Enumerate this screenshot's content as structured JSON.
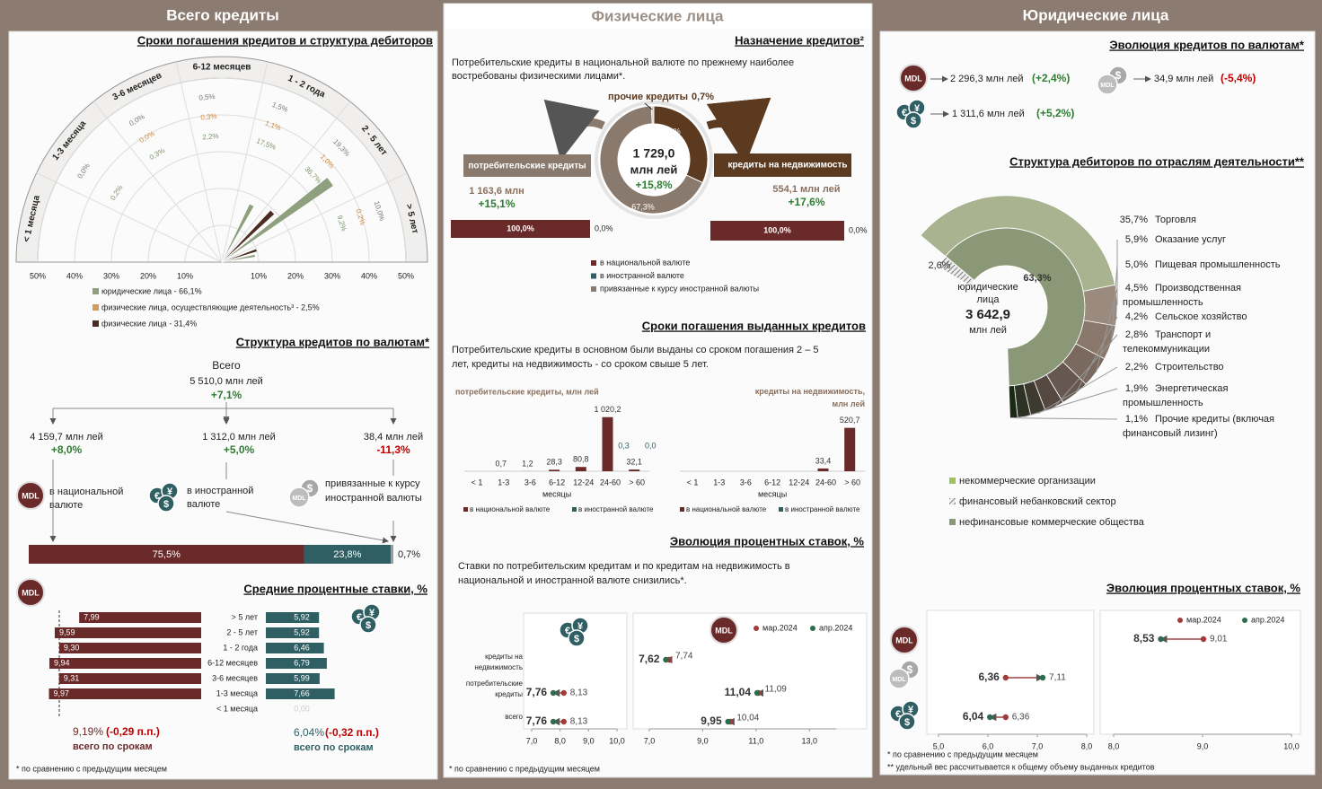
{
  "panels": {
    "total": "Всего кредиты",
    "individuals": "Физические лица",
    "legal": "Юридические лица"
  },
  "icons": {
    "mdl": "MDL",
    "fx": [
      "€",
      "$",
      "¥"
    ],
    "linked": "$"
  },
  "total": {
    "maturity": {
      "type": "polar-bar",
      "title": "Сроки погашения кредитов и структура дебиторов",
      "categories": [
        "< 1 месяца",
        "1-3 месяца",
        "3-6 месяцев",
        "6-12 месяцев",
        "1 - 2 года",
        "2 - 5 лет",
        "> 5 лет"
      ],
      "rlim": [
        0,
        50
      ],
      "rticks": [
        {
          "value": 10,
          "label": "10%"
        },
        {
          "value": 20,
          "label": "20%"
        },
        {
          "value": 30,
          "label": "30%"
        },
        {
          "value": 40,
          "label": "40%"
        },
        {
          "value": 50,
          "label": "50%"
        }
      ],
      "series": [
        {
          "name": "юридические лица - 66,1%",
          "color": "#8fa07e",
          "values": [
            null,
            0.2,
            0.3,
            2.2,
            17.5,
            36.7,
            9.2
          ],
          "value_labels": [
            null,
            "0,2%",
            "0,3%",
            "2,2%",
            "17,5%",
            "36,7%",
            "9,2%"
          ]
        },
        {
          "name": "физические лица, осуществляющие деятельность³ - 2,5%",
          "color": "#d39a5e",
          "values": [
            null,
            null,
            0.0,
            0.3,
            1.1,
            1.0,
            0.2
          ],
          "value_labels": [
            null,
            null,
            "0,0%",
            "0,3%",
            "1,1%",
            "1,0%",
            "0,2%"
          ]
        },
        {
          "name": "физические лица - 31,4%",
          "color": "#4a2c20",
          "values": [
            null,
            0.0,
            0.0,
            0.5,
            1.5,
            19.3,
            10.0
          ],
          "value_labels": [
            null,
            "0,0%",
            "0,0%",
            "0,5%",
            "1,5%",
            "19,3%",
            "10,0%"
          ]
        }
      ]
    },
    "currency": {
      "title": "Структура кредитов по валютам*",
      "total_label": "Всего",
      "total_value": "5 510,0 млн лей",
      "total_change": "+7,1%",
      "items": [
        {
          "amount": "4 159,7 млн лей",
          "change": "+8,0%",
          "label": "в национальной валюте"
        },
        {
          "amount": "1 312,0 млн лей",
          "change": "+5,0%",
          "label": "в  иностранной валюте"
        },
        {
          "amount": "38,4 млн лей",
          "change": "-11,3%",
          "label": "привязанные к курсу иностранной валюты"
        }
      ],
      "shares": {
        "values": [
          75.5,
          23.8,
          0.7
        ],
        "value_labels": [
          "75,5%",
          "23,8%",
          "0,7%"
        ],
        "colors": [
          "#6b2a2a",
          "#2f5f63",
          "#9a9a9a"
        ]
      }
    },
    "rates": {
      "title": "Средние процентные ставки, %",
      "categories": [
        "> 5 лет",
        "2 - 5 лет",
        "1 - 2 года",
        "6-12 месяцев",
        "3-6 месяцев",
        "1-3 месяца",
        "< 1 месяца"
      ],
      "mdl": {
        "color": "#6b2a2a",
        "xlim": [
          0,
          10
        ],
        "values": [
          7.99,
          9.59,
          9.3,
          9.94,
          9.31,
          9.97,
          null
        ],
        "value_labels": [
          "7,99",
          "9,59",
          "9,30",
          "9,94",
          "9,31",
          "9,97",
          null
        ]
      },
      "fx": {
        "color": "#2f5f63",
        "xlim": [
          0,
          10
        ],
        "values": [
          5.92,
          5.92,
          6.46,
          6.79,
          5.99,
          7.66,
          0.0
        ],
        "value_labels": [
          "5,92",
          "5,92",
          "6,46",
          "6,79",
          "5,99",
          "7,66",
          "0,00"
        ]
      },
      "mdl_total": {
        "value": "9,19%",
        "change": "(-0,29 п.п.)",
        "label": "всего по срокам"
      },
      "fx_total": {
        "value": "6,04%",
        "change": "(-0,32 п.п.)",
        "label": "всего по срокам"
      }
    },
    "footnote": "* по сравнению с предыдущим месяцем"
  },
  "individuals": {
    "purpose": {
      "type": "donut",
      "title": "Назначение кредитов²",
      "text": "Потребительские кредиты в национальной валюте по прежнему наиболее востребованы физическими лицами*.",
      "total": "1 729,0",
      "unit": "млн лей",
      "change": "+15,8%",
      "categories": [
        "кредиты на недвижимость",
        "потребительские кредиты",
        "прочие кредиты"
      ],
      "values": [
        32.0,
        67.3,
        0.7
      ],
      "value_labels": [
        "32,0%",
        "67,3%",
        "0,7%"
      ],
      "colors": [
        "#5b3a1f",
        "#8a7a6e",
        "#cfc8c2"
      ],
      "consumer": {
        "amount": "1 163,6 млн",
        "change": "+15,1%",
        "shares": [
          100.0,
          0.0
        ],
        "share_labels": [
          "100,0%",
          "0,0%"
        ]
      },
      "realestate": {
        "amount": "554,1 млн лей",
        "change": "+17,6%",
        "shares": [
          100.0,
          0.0
        ],
        "share_labels": [
          "100,0%",
          "0,0%"
        ]
      },
      "legend": [
        {
          "name": "в национальной валюте",
          "color": "#6b2a2a"
        },
        {
          "name": "в иностранной валюте",
          "color": "#2f5f63"
        },
        {
          "name": "привязанные к курсу иностранной валюты",
          "color": "#8a7a6e"
        }
      ]
    },
    "maturity": {
      "title": "Сроки погашения выданных кредитов",
      "text": "Потребительские кредиты в основном были выданы со сроком погашения 2 – 5 лет, кредиты на недвижимость - со сроком свыше 5 лет.",
      "x_label": "месяцы",
      "categories": [
        "< 1",
        "1-3",
        "3-6",
        "6-12",
        "12-24",
        "24-60",
        "> 60"
      ],
      "charts": [
        {
          "type": "bar",
          "title": "потребительские кредиты, млн лей",
          "ylim": [
            0,
            1100
          ],
          "series": [
            {
              "name": "в национальной валюте",
              "color": "#6b2a2a",
              "values": [
                null,
                0.7,
                1.2,
                28.3,
                80.8,
                1020.2,
                32.1
              ],
              "value_labels": [
                null,
                "0,7",
                "1,2",
                "28,3",
                "80,8",
                "1 020,2",
                "32,1"
              ]
            },
            {
              "name": "в иностранной валюте",
              "color": "#2f5f63",
              "values": [
                null,
                null,
                null,
                null,
                null,
                0.3,
                0.0
              ],
              "value_labels": [
                null,
                null,
                null,
                null,
                null,
                "0,3",
                "0,0"
              ]
            }
          ]
        },
        {
          "type": "bar",
          "title": "кредиты на недвижимость, млн лей",
          "ylim": [
            0,
            700
          ],
          "series": [
            {
              "name": "в национальной валюте",
              "color": "#6b2a2a",
              "values": [
                null,
                null,
                null,
                null,
                null,
                33.4,
                520.7
              ],
              "value_labels": [
                null,
                null,
                null,
                null,
                null,
                "33,4",
                "520,7"
              ]
            },
            {
              "name": "в иностранной валюте",
              "color": "#2f5f63",
              "values": [
                null,
                null,
                null,
                null,
                null,
                null,
                null
              ],
              "value_labels": [
                null,
                null,
                null,
                null,
                null,
                null,
                null
              ]
            }
          ]
        }
      ]
    },
    "rates": {
      "title": "Эволюция процентных ставок, %",
      "text": "Ставки по потребительским кредитам и по кредитам на недвижимость в национальной и иностранной валюте снизились*.",
      "categories": [
        "кредиты на недвижимость",
        "потребительские кредиты",
        "всего"
      ],
      "series": [
        {
          "name": "мар.2024",
          "color": "#a33a3a"
        },
        {
          "name": "апр.2024",
          "color": "#2e6b4f"
        }
      ],
      "charts": [
        {
          "type": "dot",
          "xlim": [
            7,
            10
          ],
          "xticks": [
            {
              "value": 7,
              "label": "7,0"
            },
            {
              "value": 8,
              "label": "8,0"
            },
            {
              "value": 9,
              "label": "9,0"
            },
            {
              "value": 10,
              "label": "10,0"
            }
          ],
          "values": [
            [
              null,
              8.13,
              8.13
            ],
            [
              null,
              7.76,
              7.76
            ]
          ],
          "value_labels": [
            [
              null,
              "8,13",
              "8,13"
            ],
            [
              null,
              "7,76",
              "7,76"
            ]
          ]
        },
        {
          "type": "dot",
          "xlim": [
            7,
            14
          ],
          "xticks": [
            {
              "value": 7,
              "label": "7,0"
            },
            {
              "value": 9,
              "label": "9,0"
            },
            {
              "value": 11,
              "label": "11,0"
            },
            {
              "value": 13,
              "label": "13,0"
            }
          ],
          "values": [
            [
              7.74,
              11.09,
              10.04
            ],
            [
              7.62,
              11.04,
              9.95
            ]
          ],
          "value_labels": [
            [
              "7,74",
              "11,09",
              "10,04"
            ],
            [
              "7,62",
              "11,04",
              "9,95"
            ]
          ]
        }
      ]
    },
    "footnote": "* по сравнению с предыдущим месяцем"
  },
  "legal": {
    "currency": {
      "title": "Эволюция кредитов по валютам*",
      "items": [
        {
          "amount": "2 296,3 млн лей",
          "change": "(+2,4%)"
        },
        {
          "amount": "34,9 млн лей",
          "change": "(-5,4%)"
        },
        {
          "amount": "1 311,6 млн лей",
          "change": "(+5,2%)"
        }
      ]
    },
    "debtors": {
      "type": "sunburst",
      "title": "Структура дебиторов по отраслям деятельности**",
      "center_label": "юридические лица",
      "center_value": "3 642,9",
      "center_unit": "млн лей",
      "legend": [
        {
          "name": "некоммерческие организации",
          "color": "#9fc35a"
        },
        {
          "name": "финансовый небанковский сектор",
          "color": "#cfcfcf"
        },
        {
          "name": "нефинансовые коммерческие общества",
          "color": "#8a9878"
        }
      ],
      "inner": {
        "values": [
          2.6,
          63.3
        ],
        "value_labels": [
          "2,6%",
          "63,3%"
        ],
        "colors": [
          "#cfcfcf",
          "#8a9878"
        ]
      },
      "outer": {
        "categories": [
          "Торговля",
          "Оказание услуг",
          "Пищевая промышленность",
          "Производственная промышленность",
          "Сельское хозяйство",
          "Транспорт и телекоммуникации",
          "Строительство",
          "Энергетическая промышленность",
          "Прочие кредиты (включая финансовый лизинг)"
        ],
        "values": [
          35.7,
          5.9,
          5.0,
          4.5,
          4.2,
          2.8,
          2.2,
          1.9,
          1.1
        ],
        "value_labels": [
          "35,7%",
          "5,9%",
          "5,0%",
          "4,5%",
          "4,2%",
          "2,8%",
          "2,2%",
          "1,9%",
          "1,1%"
        ],
        "colors": [
          "#a9b38f",
          "#9b8a7e",
          "#8a786c",
          "#7a695f",
          "#665850",
          "#544840",
          "#3f3a30",
          "#2c3324",
          "#1b2816"
        ]
      }
    },
    "rates": {
      "title": "Эволюция процентных ставок, %",
      "series": [
        {
          "name": "мар.2024",
          "color": "#a33a3a"
        },
        {
          "name": "апр.2024",
          "color": "#2e6b4f"
        }
      ],
      "charts": [
        {
          "type": "dot",
          "xlim": [
            5,
            8
          ],
          "xticks": [
            {
              "value": 5,
              "label": "5,0"
            },
            {
              "value": 6,
              "label": "6,0"
            },
            {
              "value": 7,
              "label": "7,0"
            },
            {
              "value": 8,
              "label": "8,0"
            }
          ],
          "values": [
            [
              null,
              6.36,
              6.36
            ],
            [
              null,
              7.11,
              6.04
            ]
          ],
          "value_labels": [
            [
              null,
              "6,36",
              "6,36"
            ],
            [
              null,
              "7,11",
              "6,04"
            ]
          ]
        },
        {
          "type": "dot",
          "xlim": [
            8,
            10
          ],
          "xticks": [
            {
              "value": 8,
              "label": "8,0"
            },
            {
              "value": 9,
              "label": "9,0"
            },
            {
              "value": 10,
              "label": "10,0"
            }
          ],
          "values": [
            [
              9.01,
              null,
              null
            ],
            [
              8.53,
              null,
              null
            ]
          ],
          "value_labels": [
            [
              "9,01",
              null,
              null
            ],
            [
              "8,53",
              null,
              null
            ]
          ]
        }
      ]
    },
    "footnotes": [
      "* по сравнению с предыдущим месяцем",
      "** удельный вес рассчитывается к общему объему выданных кредитов"
    ]
  }
}
